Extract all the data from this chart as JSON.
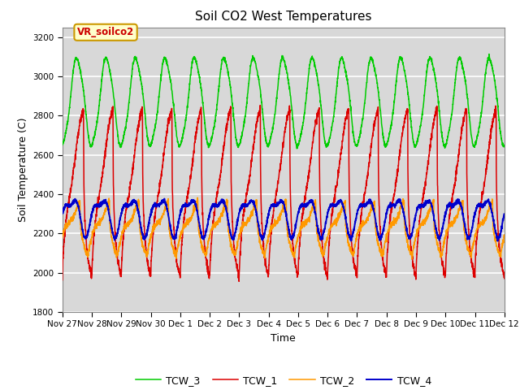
{
  "title": "Soil CO2 West Temperatures",
  "ylabel": "Soil Temperature (C)",
  "xlabel": "Time",
  "annotation_label": "VR_soilco2",
  "ylim": [
    1800,
    3250
  ],
  "xlim": [
    0,
    15
  ],
  "tick_labels": [
    "Nov 27",
    "Nov 28",
    "Nov 29",
    "Nov 30",
    "Dec 1",
    "Dec 2",
    "Dec 3",
    "Dec 4",
    "Dec 5",
    "Dec 6",
    "Dec 7",
    "Dec 8",
    "Dec 9",
    "Dec 10",
    "Dec 11",
    "Dec 12"
  ],
  "tick_positions": [
    0,
    1,
    2,
    3,
    4,
    5,
    6,
    7,
    8,
    9,
    10,
    11,
    12,
    13,
    14,
    15
  ],
  "colors": {
    "TCW_1": "#dd0000",
    "TCW_2": "#ff9900",
    "TCW_3": "#00cc00",
    "TCW_4": "#0000cc"
  },
  "yticks": [
    1800,
    2000,
    2200,
    2400,
    2600,
    2800,
    3000,
    3200
  ],
  "bg_color": "#ffffff",
  "plot_bg_color": "#d8d8d8",
  "grid_color": "#ffffff",
  "annotation_bg": "#ffffcc",
  "annotation_border": "#cc9900",
  "annotation_text_color": "#cc0000",
  "title_fontsize": 11,
  "axis_label_fontsize": 9,
  "tick_fontsize": 7.5
}
